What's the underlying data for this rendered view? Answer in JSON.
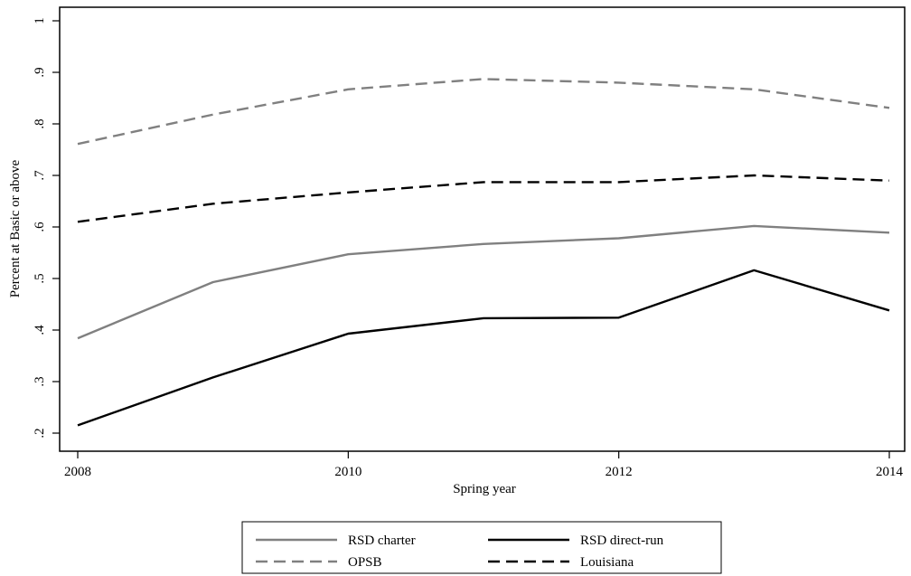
{
  "chart_data": {
    "type": "line",
    "title": "",
    "xlabel": "Spring year",
    "ylabel": "Percent at Basic or above",
    "xlim": [
      2008,
      2014
    ],
    "ylim": [
      0.2,
      1.0
    ],
    "x_ticks": [
      2008,
      2010,
      2012,
      2014
    ],
    "x_tick_labels": [
      "2008",
      "2010",
      "2012",
      "2014"
    ],
    "y_ticks": [
      0.2,
      0.3,
      0.4,
      0.5,
      0.6,
      0.7,
      0.8,
      0.9,
      1.0
    ],
    "y_tick_labels": [
      ".2",
      ".3",
      ".4",
      ".5",
      ".6",
      ".7",
      ".8",
      ".9",
      "1"
    ],
    "grid": false,
    "legend_position": "bottom",
    "x": [
      2008,
      2009,
      2010,
      2011,
      2012,
      2013,
      2014
    ],
    "series": [
      {
        "name": "RSD charter",
        "values": [
          0.384,
          0.493,
          0.547,
          0.567,
          0.578,
          0.602,
          0.589
        ],
        "color": "#808080",
        "dash": "solid"
      },
      {
        "name": "RSD direct-run",
        "values": [
          0.215,
          0.308,
          0.393,
          0.423,
          0.424,
          0.516,
          0.438
        ],
        "color": "#000000",
        "dash": "solid"
      },
      {
        "name": "OPSB",
        "values": [
          0.761,
          0.818,
          0.867,
          0.887,
          0.88,
          0.867,
          0.831
        ],
        "color": "#808080",
        "dash": "dashed"
      },
      {
        "name": "Louisiana",
        "values": [
          0.61,
          0.645,
          0.667,
          0.687,
          0.687,
          0.7,
          0.69
        ],
        "color": "#000000",
        "dash": "dashed"
      }
    ]
  }
}
